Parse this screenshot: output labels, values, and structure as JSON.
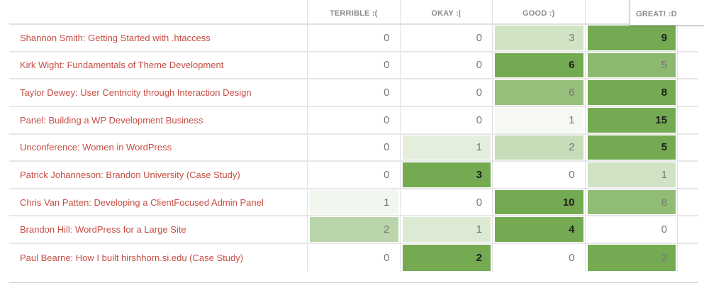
{
  "table": {
    "columns": [
      "TERRIBLE :(",
      "OKAY :|",
      "GOOD :)",
      "GREAT! :D"
    ],
    "dragged_header": {
      "label": "GREAT! :D",
      "column_index": 3
    },
    "rows": [
      {
        "label": "Shannon Smith: Getting Started with .htaccess",
        "values": [
          0,
          0,
          3,
          9
        ]
      },
      {
        "label": "Kirk Wight: Fundamentals of Theme Development",
        "values": [
          0,
          0,
          6,
          5
        ]
      },
      {
        "label": "Taylor Dewey: User Centricity through Interaction Design",
        "values": [
          0,
          0,
          6,
          8
        ]
      },
      {
        "label": "Panel: Building a WP Development Business",
        "values": [
          0,
          0,
          1,
          15
        ]
      },
      {
        "label": "Unconference: Women in WordPress",
        "values": [
          0,
          1,
          2,
          5
        ]
      },
      {
        "label": "Patrick Johanneson: Brandon University (Case Study)",
        "values": [
          0,
          3,
          0,
          1
        ]
      },
      {
        "label": "Chris Van Patten: Developing a ClientFocused Admin Panel",
        "values": [
          1,
          0,
          10,
          8
        ]
      },
      {
        "label": "Brandon Hill: WordPress for a Large Site",
        "values": [
          2,
          1,
          4,
          0
        ]
      },
      {
        "label": "Paul Bearne: How I built hirshhorn.si.edu (Case Study)",
        "values": [
          0,
          2,
          0,
          2
        ]
      }
    ]
  },
  "colors": {
    "heat_green_max": "#74ab52",
    "session_link_red": "#c74d44",
    "header_text_gray": "#8b8b8b",
    "number_gray": "#777777",
    "number_max_black": "#1d1d1d"
  }
}
